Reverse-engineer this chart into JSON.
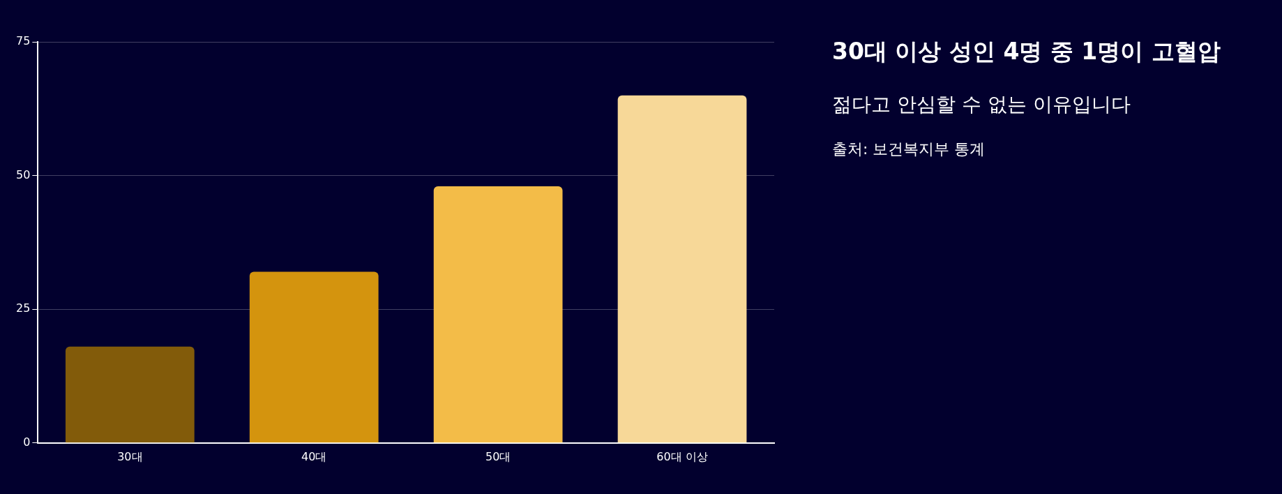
{
  "chart_data": {
    "type": "bar",
    "title": "30대 이상 성인 4명 중 1명이 고혈압",
    "subtitle": "젊다고 안심할 수 없는 이유입니다",
    "annotations": [
      "출처: 보건복지부 통계"
    ],
    "categories": [
      "30대",
      "40대",
      "50대",
      "60대 이상"
    ],
    "values": [
      18,
      32,
      48,
      65
    ],
    "colors": [
      "#825b0a",
      "#d4940e",
      "#f3bc48",
      "#f7d898"
    ],
    "ylim": [
      0,
      75
    ],
    "yticks": [
      0,
      25,
      50,
      75
    ],
    "grid": "y",
    "legend": false
  }
}
